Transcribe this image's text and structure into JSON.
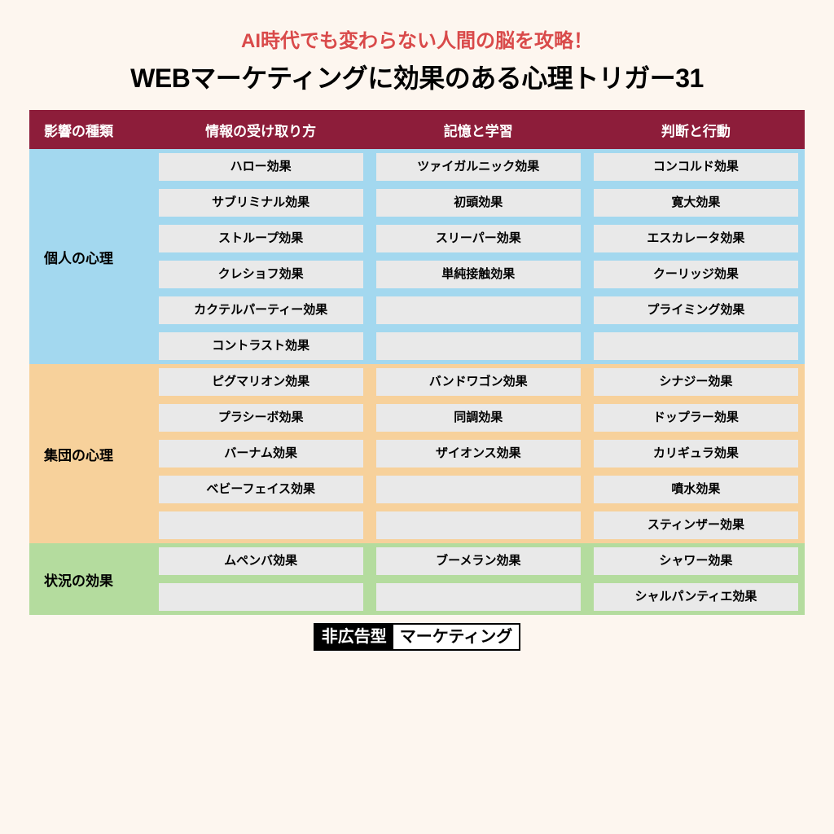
{
  "subtitle": "AI時代でも変わらない人間の脳を攻略！",
  "subtitle_color": "#d94a4a",
  "title": "WEBマーケティングに効果のある心理トリガー31",
  "header_bg": "#8d1d3a",
  "columns": [
    "影響の種類",
    "情報の受け取り方",
    "記憶と学習",
    "判断と行動"
  ],
  "sections": [
    {
      "label": "個人の心理",
      "bg": "#a3d8ef",
      "rows": [
        [
          "ハロー効果",
          "ツァイガルニック効果",
          "コンコルド効果"
        ],
        [
          "サブリミナル効果",
          "初頭効果",
          "寛大効果"
        ],
        [
          "ストループ効果",
          "スリーパー効果",
          "エスカレータ効果"
        ],
        [
          "クレショフ効果",
          "単純接触効果",
          "クーリッジ効果"
        ],
        [
          "カクテルパーティー効果",
          "",
          "プライミング効果"
        ],
        [
          "コントラスト効果",
          "",
          ""
        ]
      ]
    },
    {
      "label": "集団の心理",
      "bg": "#f7d19b",
      "rows": [
        [
          "ピグマリオン効果",
          "バンドワゴン効果",
          "シナジー効果"
        ],
        [
          "プラシーボ効果",
          "同調効果",
          "ドップラー効果"
        ],
        [
          "バーナム効果",
          "ザイオンス効果",
          "カリギュラ効果"
        ],
        [
          "ベビーフェイス効果",
          "",
          "噴水効果"
        ],
        [
          "",
          "",
          "スティンザー効果"
        ]
      ]
    },
    {
      "label": "状況の効果",
      "bg": "#b4dc9e",
      "rows": [
        [
          "ムペンバ効果",
          "ブーメラン効果",
          "シャワー効果"
        ],
        [
          "",
          "",
          "シャルパンティエ効果"
        ]
      ]
    }
  ],
  "footer_dark": "非広告型",
  "footer_light": "マーケティング",
  "pill_bg": "#e9e9e9"
}
